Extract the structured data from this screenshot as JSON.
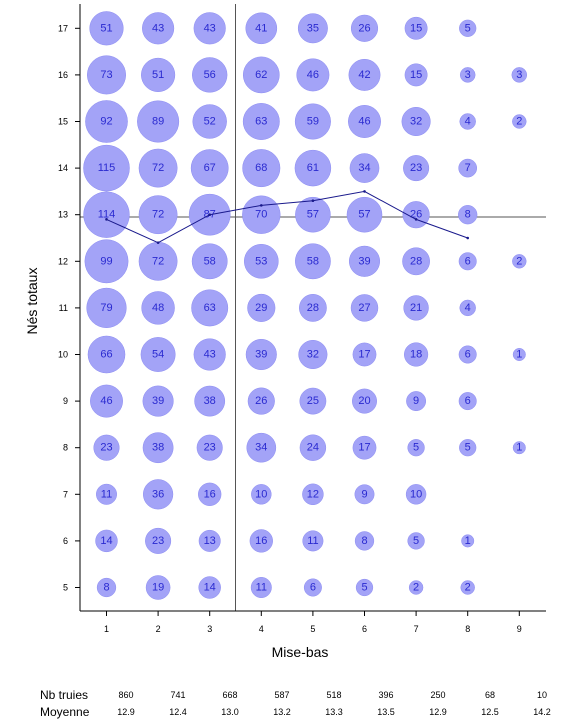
{
  "chart_data": {
    "type": "scatter",
    "subtype": "bubble",
    "xlabel": "Mise-bas",
    "ylabel": "Nés totaux",
    "x_ticks": [
      1,
      2,
      3,
      4,
      5,
      6,
      7,
      8,
      9
    ],
    "y_ticks": [
      5,
      6,
      7,
      8,
      9,
      10,
      11,
      12,
      13,
      14,
      15,
      16,
      17
    ],
    "xlim": [
      0.5,
      9.5
    ],
    "ylim": [
      4.5,
      17.5
    ],
    "bubble_color": "#a3a3f7",
    "label_color": "#2a2ad0",
    "line_color": "#1a1a8c",
    "bubbles": [
      {
        "x": 1,
        "y": 17,
        "count": 51
      },
      {
        "x": 2,
        "y": 17,
        "count": 43
      },
      {
        "x": 3,
        "y": 17,
        "count": 43
      },
      {
        "x": 4,
        "y": 17,
        "count": 41
      },
      {
        "x": 5,
        "y": 17,
        "count": 35
      },
      {
        "x": 6,
        "y": 17,
        "count": 26
      },
      {
        "x": 7,
        "y": 17,
        "count": 15
      },
      {
        "x": 8,
        "y": 17,
        "count": 5
      },
      {
        "x": 1,
        "y": 16,
        "count": 73
      },
      {
        "x": 2,
        "y": 16,
        "count": 51
      },
      {
        "x": 3,
        "y": 16,
        "count": 56
      },
      {
        "x": 4,
        "y": 16,
        "count": 62
      },
      {
        "x": 5,
        "y": 16,
        "count": 46
      },
      {
        "x": 6,
        "y": 16,
        "count": 42
      },
      {
        "x": 7,
        "y": 16,
        "count": 15
      },
      {
        "x": 8,
        "y": 16,
        "count": 3
      },
      {
        "x": 9,
        "y": 16,
        "count": 3
      },
      {
        "x": 1,
        "y": 15,
        "count": 92
      },
      {
        "x": 2,
        "y": 15,
        "count": 89
      },
      {
        "x": 3,
        "y": 15,
        "count": 52
      },
      {
        "x": 4,
        "y": 15,
        "count": 63
      },
      {
        "x": 5,
        "y": 15,
        "count": 59
      },
      {
        "x": 6,
        "y": 15,
        "count": 46
      },
      {
        "x": 7,
        "y": 15,
        "count": 32
      },
      {
        "x": 8,
        "y": 15,
        "count": 4
      },
      {
        "x": 9,
        "y": 15,
        "count": 2
      },
      {
        "x": 1,
        "y": 14,
        "count": 115
      },
      {
        "x": 2,
        "y": 14,
        "count": 72
      },
      {
        "x": 3,
        "y": 14,
        "count": 67
      },
      {
        "x": 4,
        "y": 14,
        "count": 68
      },
      {
        "x": 5,
        "y": 14,
        "count": 61
      },
      {
        "x": 6,
        "y": 14,
        "count": 34
      },
      {
        "x": 7,
        "y": 14,
        "count": 23
      },
      {
        "x": 8,
        "y": 14,
        "count": 7
      },
      {
        "x": 1,
        "y": 13,
        "count": 114
      },
      {
        "x": 2,
        "y": 13,
        "count": 72
      },
      {
        "x": 3,
        "y": 13,
        "count": 87
      },
      {
        "x": 4,
        "y": 13,
        "count": 70
      },
      {
        "x": 5,
        "y": 13,
        "count": 57
      },
      {
        "x": 6,
        "y": 13,
        "count": 57
      },
      {
        "x": 7,
        "y": 13,
        "count": 26
      },
      {
        "x": 8,
        "y": 13,
        "count": 8
      },
      {
        "x": 1,
        "y": 12,
        "count": 99
      },
      {
        "x": 2,
        "y": 12,
        "count": 72
      },
      {
        "x": 3,
        "y": 12,
        "count": 58
      },
      {
        "x": 4,
        "y": 12,
        "count": 53
      },
      {
        "x": 5,
        "y": 12,
        "count": 58
      },
      {
        "x": 6,
        "y": 12,
        "count": 39
      },
      {
        "x": 7,
        "y": 12,
        "count": 28
      },
      {
        "x": 8,
        "y": 12,
        "count": 6
      },
      {
        "x": 9,
        "y": 12,
        "count": 2
      },
      {
        "x": 1,
        "y": 11,
        "count": 79
      },
      {
        "x": 2,
        "y": 11,
        "count": 48
      },
      {
        "x": 3,
        "y": 11,
        "count": 63
      },
      {
        "x": 4,
        "y": 11,
        "count": 29
      },
      {
        "x": 5,
        "y": 11,
        "count": 28
      },
      {
        "x": 6,
        "y": 11,
        "count": 27
      },
      {
        "x": 7,
        "y": 11,
        "count": 21
      },
      {
        "x": 8,
        "y": 11,
        "count": 4
      },
      {
        "x": 1,
        "y": 10,
        "count": 66
      },
      {
        "x": 2,
        "y": 10,
        "count": 54
      },
      {
        "x": 3,
        "y": 10,
        "count": 43
      },
      {
        "x": 4,
        "y": 10,
        "count": 39
      },
      {
        "x": 5,
        "y": 10,
        "count": 32
      },
      {
        "x": 6,
        "y": 10,
        "count": 17
      },
      {
        "x": 7,
        "y": 10,
        "count": 18
      },
      {
        "x": 8,
        "y": 10,
        "count": 6
      },
      {
        "x": 9,
        "y": 10,
        "count": 1
      },
      {
        "x": 1,
        "y": 9,
        "count": 46
      },
      {
        "x": 2,
        "y": 9,
        "count": 39
      },
      {
        "x": 3,
        "y": 9,
        "count": 38
      },
      {
        "x": 4,
        "y": 9,
        "count": 26
      },
      {
        "x": 5,
        "y": 9,
        "count": 25
      },
      {
        "x": 6,
        "y": 9,
        "count": 20
      },
      {
        "x": 7,
        "y": 9,
        "count": 9
      },
      {
        "x": 8,
        "y": 9,
        "count": 6
      },
      {
        "x": 1,
        "y": 8,
        "count": 23
      },
      {
        "x": 2,
        "y": 8,
        "count": 38
      },
      {
        "x": 3,
        "y": 8,
        "count": 23
      },
      {
        "x": 4,
        "y": 8,
        "count": 34
      },
      {
        "x": 5,
        "y": 8,
        "count": 24
      },
      {
        "x": 6,
        "y": 8,
        "count": 17
      },
      {
        "x": 7,
        "y": 8,
        "count": 5
      },
      {
        "x": 8,
        "y": 8,
        "count": 5
      },
      {
        "x": 9,
        "y": 8,
        "count": 1
      },
      {
        "x": 1,
        "y": 7,
        "count": 11
      },
      {
        "x": 2,
        "y": 7,
        "count": 36
      },
      {
        "x": 3,
        "y": 7,
        "count": 16
      },
      {
        "x": 4,
        "y": 7,
        "count": 10
      },
      {
        "x": 5,
        "y": 7,
        "count": 12
      },
      {
        "x": 6,
        "y": 7,
        "count": 9
      },
      {
        "x": 7,
        "y": 7,
        "count": 10
      },
      {
        "x": 1,
        "y": 6,
        "count": 14
      },
      {
        "x": 2,
        "y": 6,
        "count": 23
      },
      {
        "x": 3,
        "y": 6,
        "count": 13
      },
      {
        "x": 4,
        "y": 6,
        "count": 16
      },
      {
        "x": 5,
        "y": 6,
        "count": 11
      },
      {
        "x": 6,
        "y": 6,
        "count": 8
      },
      {
        "x": 7,
        "y": 6,
        "count": 5
      },
      {
        "x": 8,
        "y": 6,
        "count": 1
      },
      {
        "x": 1,
        "y": 5,
        "count": 8
      },
      {
        "x": 2,
        "y": 5,
        "count": 19
      },
      {
        "x": 3,
        "y": 5,
        "count": 14
      },
      {
        "x": 4,
        "y": 5,
        "count": 11
      },
      {
        "x": 5,
        "y": 5,
        "count": 6
      },
      {
        "x": 6,
        "y": 5,
        "count": 5
      },
      {
        "x": 7,
        "y": 5,
        "count": 2
      },
      {
        "x": 8,
        "y": 5,
        "count": 2
      }
    ],
    "mean_line": {
      "x": [
        1,
        2,
        3,
        4,
        5,
        6,
        7,
        8
      ],
      "y": [
        12.9,
        12.4,
        13.0,
        13.2,
        13.3,
        13.5,
        12.9,
        12.5
      ]
    },
    "reference_lines": {
      "vertical_x": 3.5,
      "horizontal_y": 12.95
    },
    "stats_table": {
      "rows": [
        {
          "label": "Nb truies",
          "values": [
            "860",
            "741",
            "668",
            "587",
            "518",
            "396",
            "250",
            "68",
            "10"
          ]
        },
        {
          "label": "Moyenne",
          "values": [
            "12.9",
            "12.4",
            "13.0",
            "13.2",
            "13.3",
            "13.5",
            "12.9",
            "12.5",
            "14.2"
          ]
        }
      ]
    }
  }
}
